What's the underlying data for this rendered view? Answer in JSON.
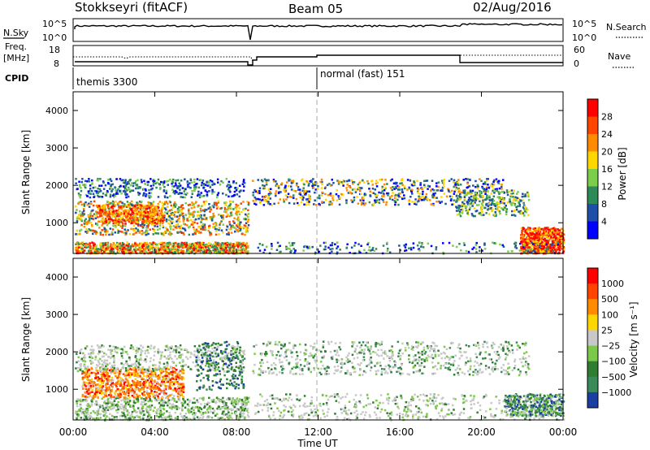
{
  "header": {
    "station": "Stokkseyri (fitACF)",
    "beam": "Beam 05",
    "date": "02/Aug/2016"
  },
  "strips": {
    "nsky_label": "N.Sky",
    "nsky_ticks": [
      "10^5",
      "10^0"
    ],
    "nsearch_label": "N.Search",
    "nsearch_ticks": [
      "10^5",
      "10^0"
    ],
    "freq_label_1": "Freq.",
    "freq_label_2": "[MHz]",
    "freq_ticks": [
      "18",
      "8"
    ],
    "nave_label": "Nave",
    "nave_ticks": [
      "60",
      "0"
    ],
    "cpid_label": "CPID",
    "cpid_segments": [
      "themis 3300",
      "normal (fast) 151"
    ]
  },
  "chart_data": [
    {
      "type": "heatmap",
      "panel": "power",
      "ylabel": "Slant Range [km]",
      "yticks": [
        1000,
        2000,
        3000,
        4000
      ],
      "ylim": [
        180,
        4500
      ],
      "xticks": [
        "00:00",
        "04:00",
        "08:00",
        "12:00",
        "16:00",
        "20:00",
        "00:00"
      ],
      "xlim_hours": [
        0,
        24
      ],
      "colorbar_label": "Power [dB]",
      "colorbar_ticks": [
        "28",
        "24",
        "20",
        "16",
        "12",
        "8",
        "4"
      ],
      "colors": [
        "#0000ff",
        "#1f4fa8",
        "#2e8b57",
        "#7ccd4c",
        "#ffd700",
        "#ff8c00",
        "#ff4500",
        "#ff0000"
      ]
    },
    {
      "type": "heatmap",
      "panel": "velocity",
      "ylabel": "Slant Range [km]",
      "yticks": [
        1000,
        2000,
        3000,
        4000
      ],
      "ylim": [
        180,
        4500
      ],
      "xticks": [
        "00:00",
        "04:00",
        "08:00",
        "12:00",
        "16:00",
        "20:00",
        "00:00"
      ],
      "xlabel": "Time UT",
      "colorbar_label": "Velocity [m s⁻¹]",
      "colorbar_ticks": [
        "1000",
        "500",
        "100",
        "25",
        "−25",
        "−100",
        "−500",
        "−1000"
      ],
      "colors": [
        "#1a3fa0",
        "#3a8a5a",
        "#2e7d32",
        "#7cc84a",
        "#c8c8c8",
        "#ffd700",
        "#ff8c00",
        "#ff4500",
        "#ff0000"
      ]
    }
  ]
}
